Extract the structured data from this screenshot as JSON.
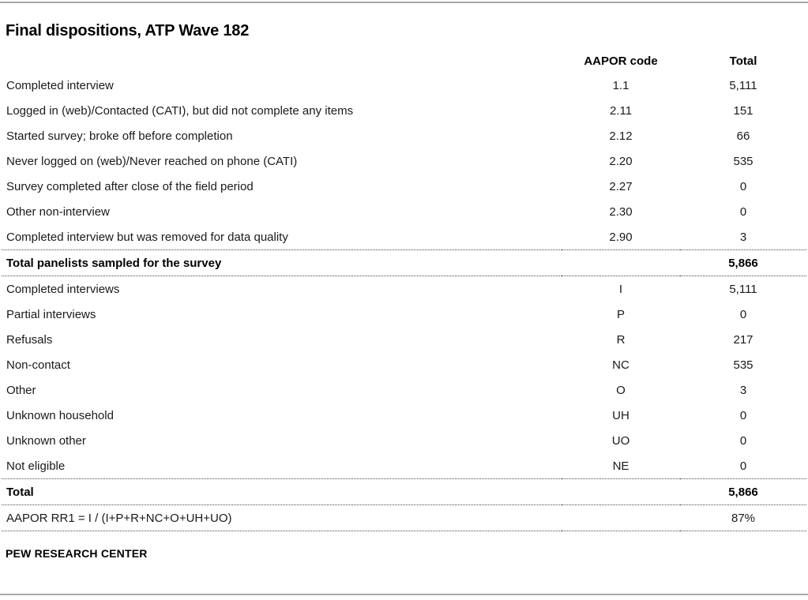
{
  "title": "Final dispositions, ATP Wave 182",
  "table": {
    "headers": {
      "label": "",
      "code": "AAPOR code",
      "total": "Total"
    },
    "rows": [
      {
        "label": "Completed interview",
        "code": "1.1",
        "total": "5,111"
      },
      {
        "label": "Logged in (web)/Contacted (CATI), but did not complete any items",
        "code": "2.11",
        "total": "151"
      },
      {
        "label": "Started survey; broke off before completion",
        "code": "2.12",
        "total": "66"
      },
      {
        "label": "Never logged on (web)/Never reached on phone (CATI)",
        "code": "2.20",
        "total": "535"
      },
      {
        "label": "Survey completed after close of the field period",
        "code": "2.27",
        "total": "0"
      },
      {
        "label": "Other non-interview",
        "code": "2.30",
        "total": "0"
      },
      {
        "label": "Completed interview but was removed for data quality",
        "code": "2.90",
        "total": "3"
      },
      {
        "label": "Total panelists sampled for the survey",
        "code": "",
        "total": "5,866"
      },
      {
        "label": "Completed interviews",
        "code": "I",
        "total": "5,111"
      },
      {
        "label": "Partial interviews",
        "code": "P",
        "total": "0"
      },
      {
        "label": "Refusals",
        "code": "R",
        "total": "217"
      },
      {
        "label": "Non-contact",
        "code": "NC",
        "total": "535"
      },
      {
        "label": "Other",
        "code": "O",
        "total": "3"
      },
      {
        "label": "Unknown household",
        "code": "UH",
        "total": "0"
      },
      {
        "label": "Unknown other",
        "code": "UO",
        "total": "0"
      },
      {
        "label": "Not eligible",
        "code": "NE",
        "total": "0"
      },
      {
        "label": "Total",
        "code": "",
        "total": "5,866"
      },
      {
        "label": "AAPOR RR1 = I / (I+P+R+NC+O+UH+UO)",
        "code": "",
        "total": "87%"
      }
    ]
  },
  "footer": {
    "source": "PEW RESEARCH CENTER"
  },
  "colors": {
    "text": "#1a1a1a",
    "title": "#000000",
    "rule_gray": "#a8a8a8",
    "dotted_separator": "#4d4d4d",
    "background": "#ffffff"
  }
}
